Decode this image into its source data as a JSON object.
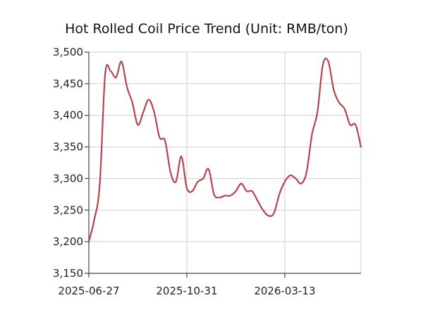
{
  "chart_data": {
    "type": "line",
    "title": "Hot Rolled Coil Price Trend (Unit: RMB/ton)",
    "xlabel": "",
    "ylabel": "",
    "ylim": [
      3150,
      3500
    ],
    "y_ticks": [
      3150,
      3200,
      3250,
      3300,
      3350,
      3400,
      3450,
      3500
    ],
    "y_tick_labels": [
      "3,150",
      "3,200",
      "3,250",
      "3,300",
      "3,350",
      "3,400",
      "3,450",
      "3,500"
    ],
    "x_tick_labels": [
      "2025-06-27",
      "2025-10-31",
      "2026-03-13"
    ],
    "x_tick_index": [
      0,
      18,
      36
    ],
    "grid": true,
    "legend": false,
    "line_color": "#b5444c",
    "series": [
      {
        "values": [
          3200,
          3235,
          3290,
          3465,
          3470,
          3460,
          3485,
          3445,
          3420,
          3385,
          3405,
          3425,
          3405,
          3365,
          3360,
          3310,
          3295,
          3335,
          3285,
          3280,
          3295,
          3300,
          3315,
          3275,
          3270,
          3273,
          3273,
          3280,
          3292,
          3280,
          3280,
          3265,
          3250,
          3241,
          3245,
          3275,
          3295,
          3305,
          3300,
          3292,
          3310,
          3370,
          3405,
          3480,
          3485,
          3440,
          3420,
          3410,
          3385,
          3385,
          3350
        ]
      }
    ]
  }
}
